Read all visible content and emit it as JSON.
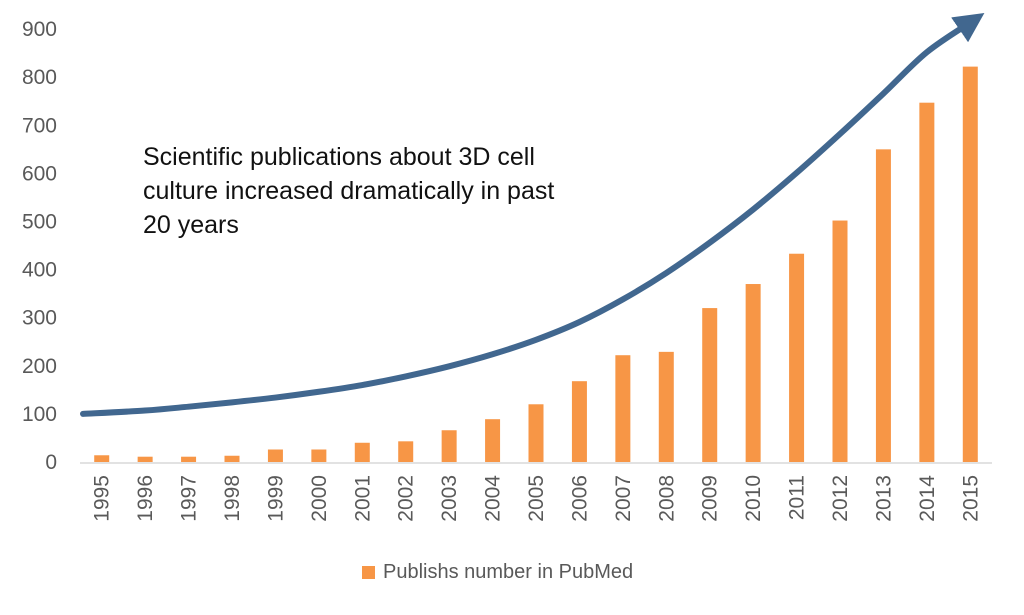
{
  "chart_data": {
    "type": "bar",
    "categories": [
      "1995",
      "1996",
      "1997",
      "1998",
      "1999",
      "2000",
      "2001",
      "2002",
      "2003",
      "2004",
      "2005",
      "2006",
      "2007",
      "2008",
      "2009",
      "2010",
      "2011",
      "2012",
      "2013",
      "2014",
      "2015"
    ],
    "series": [
      {
        "name": "Publishs number in PubMed",
        "values": [
          14,
          11,
          11,
          13,
          26,
          26,
          40,
          43,
          66,
          89,
          120,
          168,
          222,
          229,
          320,
          370,
          433,
          502,
          650,
          747,
          822
        ],
        "color": "#F79646"
      }
    ],
    "trend_arrow": {
      "color": "#41678F",
      "values": [
        100,
        107,
        115,
        124,
        134,
        146,
        160,
        178,
        199,
        224,
        254,
        291,
        338,
        393,
        456,
        525,
        601,
        682,
        766,
        852,
        916
      ]
    },
    "yticks": [
      0,
      100,
      200,
      300,
      400,
      500,
      600,
      700,
      800,
      900
    ],
    "ylim": [
      0,
      920
    ],
    "annotation": "Scientific publications about 3D cell\nculture increased dramatically in past\n20 years",
    "legend_position": "bottom",
    "xlabel": "",
    "ylabel": "",
    "title": ""
  }
}
